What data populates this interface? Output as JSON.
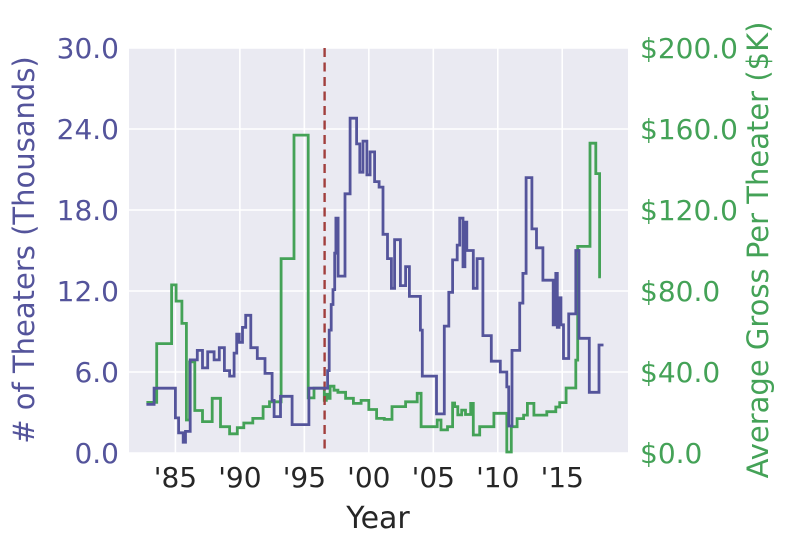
{
  "chart_data": {
    "type": "line",
    "style": "step-after dual-axis time series on seaborn darkgrid",
    "title": "",
    "x_axis": {
      "label": "Year",
      "range": [
        1981.4,
        2020.1
      ],
      "ticks": [
        1985,
        1990,
        1995,
        2000,
        2005,
        2010,
        2015
      ],
      "tick_labels": [
        "'85",
        "'90",
        "'95",
        "'00",
        "'05",
        "'10",
        "'15"
      ],
      "color": "#262626"
    },
    "left_axis": {
      "label": "# of Theaters (Thousands)",
      "range": [
        0,
        30
      ],
      "ticks": [
        0,
        6,
        12,
        18,
        24,
        30
      ],
      "tick_labels": [
        "0.0",
        "6.0",
        "12.0",
        "18.0",
        "24.0",
        "30.0"
      ],
      "color": "#54549b"
    },
    "right_axis": {
      "label": "Average Gross Per Theater ($K)",
      "range": [
        0,
        200
      ],
      "ticks": [
        0,
        40,
        80,
        120,
        160,
        200
      ],
      "tick_labels": [
        "$0.0",
        "$40.0",
        "$80.0",
        "$120.0",
        "$160.0",
        "$200.0"
      ],
      "color": "#44a257"
    },
    "vline": {
      "x": 1996.57,
      "color": "#a13f3d",
      "style": "dashed"
    },
    "grid": {
      "on": true,
      "color": "#ffffff"
    },
    "plot_bg": "#eaeaf2",
    "legend": "none",
    "series": [
      {
        "name": "Average Gross Per Theater ($K)",
        "axis": "right",
        "color": "#44a257",
        "points": [
          [
            1982.75,
            25
          ],
          [
            1983.55,
            54
          ],
          [
            1984.7,
            83
          ],
          [
            1985.05,
            75
          ],
          [
            1985.5,
            64
          ],
          [
            1985.85,
            16.3
          ],
          [
            1986.1,
            45
          ],
          [
            1986.5,
            21
          ],
          [
            1987.1,
            15.5
          ],
          [
            1987.85,
            27
          ],
          [
            1988.5,
            13
          ],
          [
            1989.2,
            9.5
          ],
          [
            1989.8,
            12.5
          ],
          [
            1990.3,
            14.8
          ],
          [
            1991.0,
            17.1
          ],
          [
            1991.8,
            22.9
          ],
          [
            1992.3,
            25.3
          ],
          [
            1993.2,
            96
          ],
          [
            1994.2,
            157
          ],
          [
            1995.3,
            27.2
          ],
          [
            1995.75,
            32
          ],
          [
            1996.55,
            26
          ],
          [
            1996.7,
            29
          ],
          [
            1996.85,
            27
          ],
          [
            1997.0,
            33
          ],
          [
            1997.3,
            31
          ],
          [
            1997.6,
            30
          ],
          [
            1998.2,
            27
          ],
          [
            1998.8,
            24.5
          ],
          [
            1999.4,
            26
          ],
          [
            2000.0,
            21.5
          ],
          [
            2000.6,
            17.1
          ],
          [
            2001.2,
            16.6
          ],
          [
            2001.8,
            22.9
          ],
          [
            2002.85,
            25.3
          ],
          [
            2003.75,
            29.5
          ],
          [
            2004.05,
            13.0
          ],
          [
            2005.3,
            16.3
          ],
          [
            2005.6,
            11.4
          ],
          [
            2006.1,
            13.0
          ],
          [
            2006.5,
            24.7
          ],
          [
            2006.65,
            22.9
          ],
          [
            2006.9,
            18.8
          ],
          [
            2007.2,
            21.2
          ],
          [
            2007.5,
            19.0
          ],
          [
            2007.9,
            24.5
          ],
          [
            2008.1,
            8.9
          ],
          [
            2008.6,
            13.0
          ],
          [
            2009.7,
            19.6
          ],
          [
            2010.7,
            0.5
          ],
          [
            2011.05,
            13.0
          ],
          [
            2011.5,
            17.0
          ],
          [
            2012.0,
            18.7
          ],
          [
            2012.3,
            24.5
          ],
          [
            2012.8,
            18.7
          ],
          [
            2013.8,
            20.4
          ],
          [
            2014.5,
            22.7
          ],
          [
            2014.8,
            24.9
          ],
          [
            2015.3,
            32.1
          ],
          [
            2016.05,
            45.9
          ],
          [
            2016.2,
            102
          ],
          [
            2017.15,
            153
          ],
          [
            2017.6,
            138
          ],
          [
            2017.9,
            87
          ],
          [
            2018.0,
            87
          ]
        ]
      },
      {
        "name": "# of Theaters (Thousands)",
        "axis": "left",
        "color": "#54549b",
        "points": [
          [
            1982.75,
            3.6
          ],
          [
            1983.35,
            4.8
          ],
          [
            1985.0,
            2.6
          ],
          [
            1985.25,
            1.5
          ],
          [
            1985.6,
            0.8
          ],
          [
            1985.78,
            1.6
          ],
          [
            1986.15,
            6.9
          ],
          [
            1986.7,
            7.6
          ],
          [
            1987.1,
            6.3
          ],
          [
            1987.5,
            7.5
          ],
          [
            1988.0,
            6.9
          ],
          [
            1988.4,
            7.8
          ],
          [
            1988.8,
            6.1
          ],
          [
            1989.2,
            5.7
          ],
          [
            1989.55,
            7.4
          ],
          [
            1989.75,
            8.8
          ],
          [
            1989.95,
            8.2
          ],
          [
            1990.2,
            9.3
          ],
          [
            1990.45,
            10.2
          ],
          [
            1990.85,
            7.8
          ],
          [
            1991.35,
            7.0
          ],
          [
            1991.95,
            5.9
          ],
          [
            1992.5,
            3.9
          ],
          [
            1992.65,
            2.7
          ],
          [
            1993.15,
            4.2
          ],
          [
            1994.05,
            2.1
          ],
          [
            1995.35,
            4.8
          ],
          [
            1996.8,
            6.1
          ],
          [
            1996.93,
            9.1
          ],
          [
            1997.08,
            11.0
          ],
          [
            1997.22,
            12.1
          ],
          [
            1997.35,
            14.8
          ],
          [
            1997.45,
            17.4
          ],
          [
            1997.62,
            13.1
          ],
          [
            1998.15,
            19.2
          ],
          [
            1998.55,
            24.8
          ],
          [
            1999.05,
            22.9
          ],
          [
            1999.3,
            20.8
          ],
          [
            1999.55,
            23.1
          ],
          [
            1999.85,
            20.6
          ],
          [
            2000.1,
            22.3
          ],
          [
            2000.45,
            20.1
          ],
          [
            2000.8,
            19.7
          ],
          [
            2001.1,
            16.2
          ],
          [
            2001.45,
            14.4
          ],
          [
            2001.75,
            12.2
          ],
          [
            2002.0,
            15.8
          ],
          [
            2002.45,
            12.4
          ],
          [
            2002.85,
            13.8
          ],
          [
            2003.15,
            11.6
          ],
          [
            2004.0,
            9.1
          ],
          [
            2004.15,
            5.7
          ],
          [
            2005.25,
            2.9
          ],
          [
            2005.85,
            9.4
          ],
          [
            2006.2,
            11.9
          ],
          [
            2006.5,
            14.3
          ],
          [
            2006.85,
            15.4
          ],
          [
            2007.05,
            17.4
          ],
          [
            2007.3,
            13.8
          ],
          [
            2007.45,
            17.1
          ],
          [
            2007.6,
            15.0
          ],
          [
            2008.1,
            12.2
          ],
          [
            2008.4,
            14.4
          ],
          [
            2008.85,
            8.7
          ],
          [
            2009.5,
            6.8
          ],
          [
            2010.2,
            6.0
          ],
          [
            2010.7,
            4.9
          ],
          [
            2010.85,
            2.0
          ],
          [
            2011.1,
            7.6
          ],
          [
            2011.7,
            11.1
          ],
          [
            2011.95,
            13.3
          ],
          [
            2012.2,
            20.4
          ],
          [
            2012.65,
            16.6
          ],
          [
            2013.0,
            15.2
          ],
          [
            2013.5,
            12.8
          ],
          [
            2014.3,
            9.5
          ],
          [
            2014.5,
            13.3
          ],
          [
            2014.62,
            9.3
          ],
          [
            2014.75,
            11.5
          ],
          [
            2014.9,
            9.5
          ],
          [
            2015.1,
            7.0
          ],
          [
            2015.5,
            10.3
          ],
          [
            2016.05,
            15.0
          ],
          [
            2016.3,
            8.5
          ],
          [
            2017.1,
            4.5
          ],
          [
            2017.85,
            8.0
          ],
          [
            2018.2,
            8.0
          ]
        ]
      }
    ]
  }
}
